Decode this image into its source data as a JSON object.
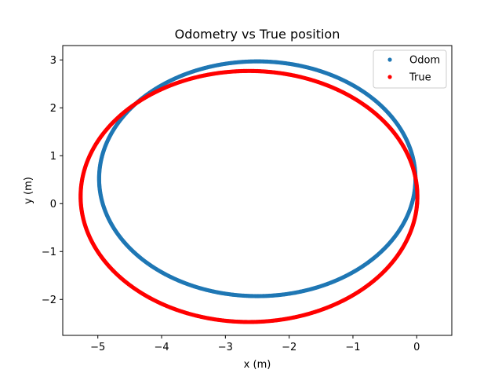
{
  "chart_data": {
    "type": "scatter",
    "title": "Odometry vs True position",
    "xlabel": "x (m)",
    "ylabel": "y (m)",
    "xlim": [
      -5.55,
      0.55
    ],
    "ylim": [
      -2.75,
      3.3
    ],
    "xticks": [
      -5,
      -4,
      -3,
      -2,
      -1,
      0
    ],
    "xtick_labels": [
      "−5",
      "−4",
      "−3",
      "−2",
      "−1",
      "0"
    ],
    "yticks": [
      -2,
      -1,
      0,
      1,
      2,
      3
    ],
    "ytick_labels": [
      "−2",
      "−1",
      "0",
      "1",
      "2",
      "3"
    ],
    "grid": false,
    "legend_position": "top-right",
    "series": [
      {
        "name": "Odom",
        "color": "#1f77b4",
        "shape": "ellipse",
        "center": [
          -2.5,
          0.52
        ],
        "radii": [
          2.48,
          2.45
        ],
        "start_point": [
          0,
          0
        ]
      },
      {
        "name": "True",
        "color": "#ff0000",
        "shape": "ellipse",
        "center": [
          -2.63,
          0.15
        ],
        "radii": [
          2.64,
          2.62
        ],
        "start_point": [
          0,
          0
        ]
      }
    ]
  }
}
